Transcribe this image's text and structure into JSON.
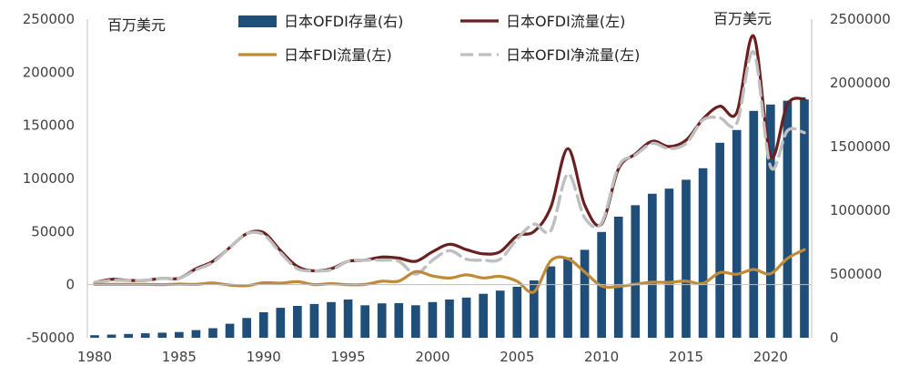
{
  "chart_data": {
    "type": "bar+line",
    "title": "",
    "left_axis": {
      "unit_label": "百万美元",
      "ylim": [
        -50000,
        250000
      ],
      "ticks": [
        -50000,
        0,
        50000,
        100000,
        150000,
        200000,
        250000
      ],
      "tick_labels": [
        "-50000",
        "0",
        "50000",
        "100000",
        "150000",
        "200000",
        "250000"
      ]
    },
    "right_axis": {
      "unit_label": "百万美元",
      "ylim": [
        0,
        2500000
      ],
      "ticks": [
        0,
        500000,
        1000000,
        1500000,
        2000000,
        2500000
      ],
      "tick_labels": [
        "0",
        "500000",
        "1000000",
        "1500000",
        "2000000",
        "2500000"
      ]
    },
    "x_axis": {
      "xlim": [
        1980,
        2022
      ],
      "ticks": [
        1980,
        1985,
        1990,
        1995,
        2000,
        2005,
        2010,
        2015,
        2020
      ],
      "tick_labels": [
        "1980",
        "1985",
        "1990",
        "1995",
        "2000",
        "2005",
        "2010",
        "2015",
        "2020"
      ]
    },
    "legend_position": "top",
    "years": [
      1980,
      1981,
      1982,
      1983,
      1984,
      1985,
      1986,
      1987,
      1988,
      1989,
      1990,
      1991,
      1992,
      1993,
      1994,
      1995,
      1996,
      1997,
      1998,
      1999,
      2000,
      2001,
      2002,
      2003,
      2004,
      2005,
      2006,
      2007,
      2008,
      2009,
      2010,
      2011,
      2012,
      2013,
      2014,
      2015,
      2016,
      2017,
      2018,
      2019,
      2020,
      2021,
      2022
    ],
    "series": [
      {
        "name": "日本OFDI存量(右)",
        "type": "bar",
        "axis": "right",
        "color": "#1f4e79",
        "values": [
          20000,
          25000,
          30000,
          35000,
          40000,
          45000,
          60000,
          75000,
          110000,
          155000,
          200000,
          235000,
          250000,
          265000,
          280000,
          300000,
          255000,
          270000,
          272000,
          255000,
          280000,
          300000,
          315000,
          345000,
          370000,
          400000,
          450000,
          560000,
          630000,
          690000,
          830000,
          950000,
          1040000,
          1130000,
          1170000,
          1240000,
          1330000,
          1530000,
          1630000,
          1780000,
          1830000,
          1860000,
          1870000
        ]
      },
      {
        "name": "日本OFDI流量(左)",
        "type": "line",
        "axis": "left",
        "color": "#6b1f1f",
        "values": [
          2000,
          5000,
          4000,
          4000,
          6000,
          6000,
          15000,
          22000,
          35000,
          48000,
          49000,
          32000,
          17000,
          13000,
          15000,
          22000,
          23000,
          26000,
          25000,
          22000,
          31000,
          38000,
          33000,
          29000,
          31000,
          46000,
          50000,
          73000,
          128000,
          75000,
          57000,
          109000,
          123000,
          135000,
          130000,
          136000,
          156000,
          168000,
          162000,
          234000,
          121000,
          170000,
          175000
        ]
      },
      {
        "name": "日本FDI流量(左)",
        "type": "line",
        "axis": "left",
        "color": "#c08a38",
        "values": [
          300,
          300,
          300,
          300,
          100,
          600,
          300,
          1500,
          -400,
          -1000,
          1800,
          1400,
          2800,
          100,
          900,
          0,
          200,
          3200,
          3300,
          12300,
          8200,
          6200,
          9200,
          6300,
          7800,
          3200,
          -6800,
          22500,
          24400,
          11900,
          -1300,
          -1700,
          500,
          2300,
          2100,
          3300,
          1200,
          11400,
          9800,
          14300,
          10300,
          24700,
          33000
        ]
      },
      {
        "name": "日本OFDI净流量(左)",
        "type": "line",
        "axis": "left",
        "color": "#bfbfbf",
        "dashed": true,
        "values": [
          2000,
          4000,
          4000,
          4000,
          6000,
          6000,
          14000,
          21000,
          35000,
          48000,
          47000,
          30000,
          15000,
          13000,
          14000,
          22000,
          23000,
          23000,
          22000,
          10000,
          23000,
          32000,
          24000,
          23000,
          24000,
          43000,
          57000,
          51000,
          104000,
          63000,
          58000,
          111000,
          122000,
          133000,
          128000,
          133000,
          155000,
          157000,
          152000,
          219000,
          111000,
          145000,
          143000
        ]
      }
    ]
  }
}
